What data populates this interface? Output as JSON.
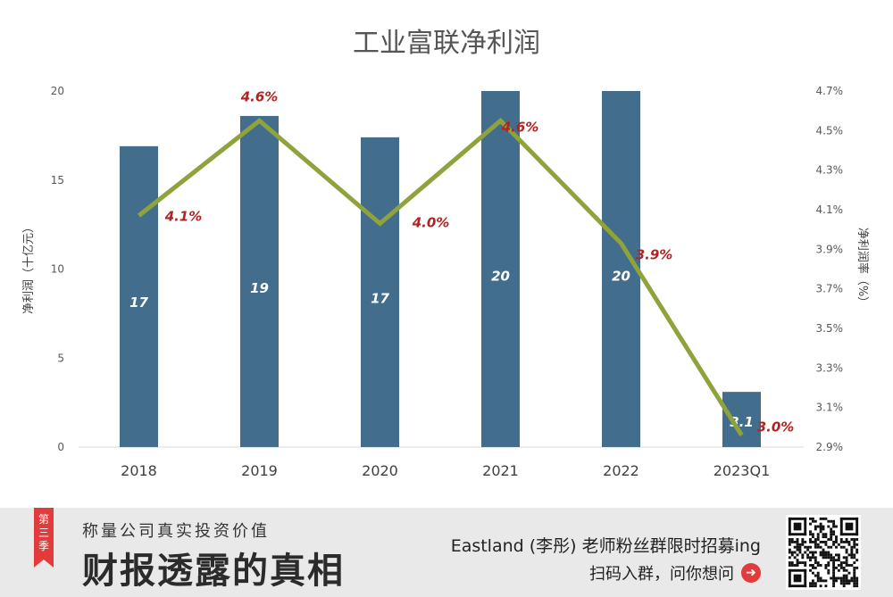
{
  "chart_data": {
    "type": "bar",
    "title": "工业富联净利润",
    "categories": [
      "2018",
      "2019",
      "2020",
      "2021",
      "2022",
      "2023Q1"
    ],
    "series": [
      {
        "name": "净利润",
        "kind": "bar",
        "axis": "left",
        "unit": "十亿元",
        "values": [
          16.9,
          18.6,
          17.4,
          20.0,
          20.0,
          3.1
        ],
        "labels": [
          "17",
          "19",
          "17",
          "20",
          "20",
          "3.1"
        ],
        "color": "#426d8c"
      },
      {
        "name": "净利润率",
        "kind": "line",
        "axis": "right",
        "unit": "%",
        "values": [
          4.07,
          4.55,
          4.03,
          4.55,
          3.93,
          2.96
        ],
        "labels": [
          "4.1%",
          "4.6%",
          "4.0%",
          "4.6%",
          "3.9%",
          "3.0%"
        ],
        "color": "#8ea33b"
      }
    ],
    "ylabel": "净利润（十亿元）",
    "y2label": "净利润率（%）",
    "ylim": [
      0,
      20
    ],
    "y_ticks": [
      "0",
      "5",
      "10",
      "15",
      "20"
    ],
    "y2lim": [
      2.9,
      4.7
    ],
    "y2_ticks": [
      "2.9%",
      "3.1%",
      "3.3%",
      "3.5%",
      "3.7%",
      "3.9%",
      "4.1%",
      "4.3%",
      "4.5%",
      "4.7%"
    ],
    "legend": "none",
    "grid": false
  },
  "footer": {
    "season_tag": "第三季",
    "tagline": "称量公司真实投资价值",
    "brand": "财报透露的真相",
    "promo": "Eastland (李彤) 老师粉丝群限时招募ing",
    "cta": "扫码入群，问你想问",
    "cta_icon": "arrow-right-icon",
    "accent_color": "#e23b3b"
  }
}
